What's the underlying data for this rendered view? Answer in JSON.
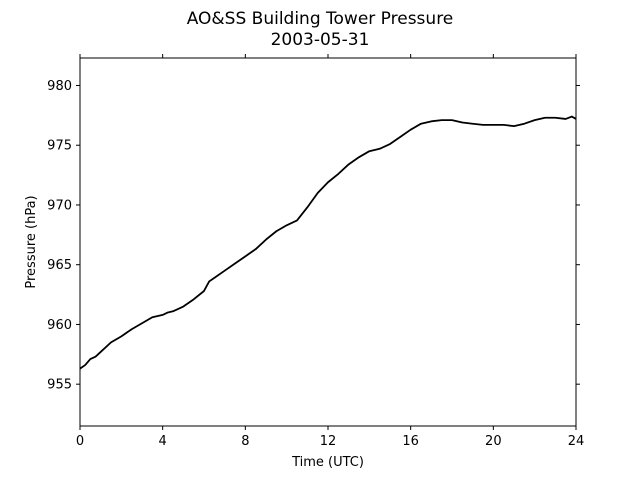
{
  "chart_data": {
    "type": "line",
    "title": "AO&SS Building Tower Pressure",
    "subtitle": "2003-05-31",
    "xlabel": "Time (UTC)",
    "ylabel": "Pressure (hPa)",
    "xlim": [
      0,
      24
    ],
    "ylim": [
      951.5,
      982.3
    ],
    "xticks": [
      0,
      4,
      8,
      12,
      16,
      20,
      24
    ],
    "yticks": [
      955,
      960,
      965,
      970,
      975,
      980
    ],
    "grid": false,
    "series": [
      {
        "color": "#000000",
        "x": [
          0,
          0.25,
          0.5,
          0.75,
          1,
          1.5,
          2,
          2.5,
          3,
          3.5,
          4,
          4.25,
          4.5,
          5,
          5.5,
          6,
          6.25,
          6.5,
          7,
          7.5,
          8,
          8.5,
          9,
          9.5,
          10,
          10.5,
          11,
          11.5,
          12,
          12.5,
          13,
          13.5,
          14,
          14.5,
          15,
          15.5,
          16,
          16.5,
          17,
          17.5,
          18,
          18.5,
          19,
          19.5,
          20,
          20.5,
          21,
          21.5,
          22,
          22.5,
          23,
          23.5,
          23.8,
          24
        ],
        "values": [
          956.3,
          956.6,
          957.1,
          957.3,
          957.7,
          958.5,
          959.0,
          959.6,
          960.1,
          960.6,
          960.8,
          961.0,
          961.1,
          961.5,
          962.1,
          962.8,
          963.6,
          963.9,
          964.5,
          965.1,
          965.7,
          966.3,
          967.1,
          967.8,
          968.3,
          968.7,
          969.8,
          971.0,
          971.9,
          972.6,
          973.4,
          974.0,
          974.5,
          974.7,
          975.1,
          975.7,
          976.3,
          976.8,
          977.0,
          977.1,
          977.1,
          976.9,
          976.8,
          976.7,
          976.7,
          976.7,
          976.6,
          976.8,
          977.1,
          977.3,
          977.3,
          977.2,
          977.4,
          977.2
        ]
      }
    ]
  }
}
